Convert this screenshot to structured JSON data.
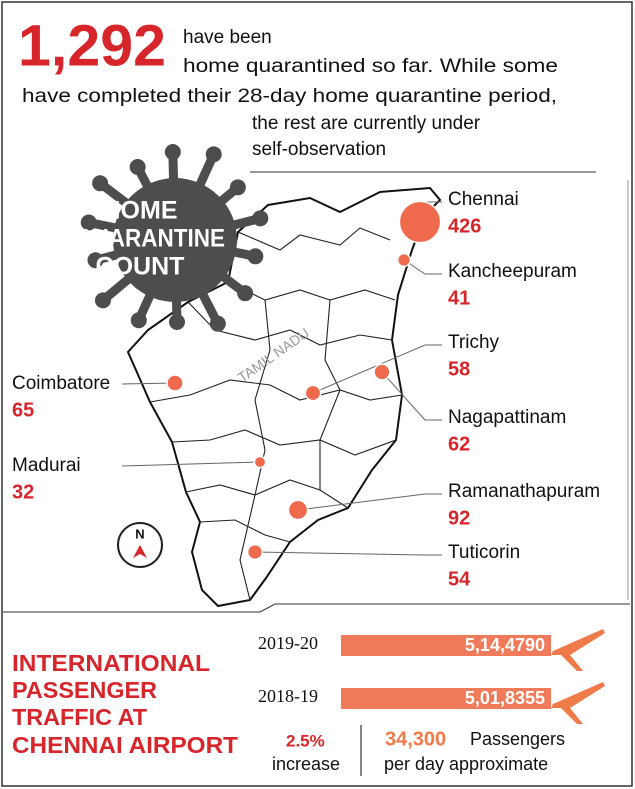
{
  "header": {
    "number": "1,292",
    "lines": [
      "have been",
      "home quarantined so far. While some",
      "have completed their 28-day home quarantine period,",
      "the rest are currently under",
      "self-observation"
    ]
  },
  "badge": {
    "lines": [
      "HOME",
      "QUARANTINE",
      "COUNT"
    ]
  },
  "map": {
    "label": "TAMIL NADU",
    "compass": "N",
    "cities": [
      {
        "name": "Chennai",
        "value": 426
      },
      {
        "name": "Kancheepuram",
        "value": 41
      },
      {
        "name": "Trichy",
        "value": 58
      },
      {
        "name": "Nagapattinam",
        "value": 62
      },
      {
        "name": "Ramanathapuram",
        "value": 92
      },
      {
        "name": "Tuticorin",
        "value": 54
      },
      {
        "name": "Coimbatore",
        "value": 65
      },
      {
        "name": "Madurai",
        "value": 32
      }
    ]
  },
  "traffic": {
    "title": [
      "INTERNATIONAL",
      "PASSENGER",
      "TRAFFIC AT",
      "CHENNAI AIRPORT"
    ],
    "bars": [
      {
        "year": "2019-20",
        "label": "5,14,4790"
      },
      {
        "year": "2018-19",
        "label": "5,01,8355"
      }
    ],
    "increase": {
      "value": "2.5%",
      "text": "increase"
    },
    "daily": {
      "value": "34,300",
      "text": "Passengers",
      "note": "per day approximate"
    }
  }
}
